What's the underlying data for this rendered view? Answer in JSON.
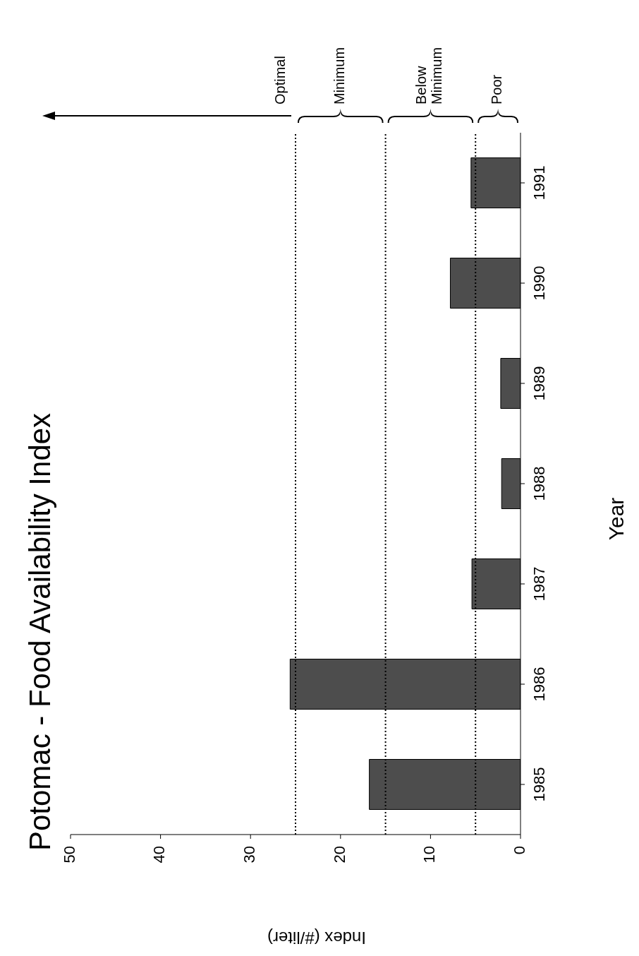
{
  "chart_data": {
    "type": "bar",
    "orientation": "horizontal",
    "title": "Potomac - Food Availability Index",
    "xlabel": "Index (#/liter)",
    "ylabel": "Year",
    "categories": [
      "1991",
      "1990",
      "1989",
      "1988",
      "1987",
      "1986",
      "1985"
    ],
    "values": [
      5.5,
      7.8,
      2.2,
      2.1,
      5.4,
      25.6,
      16.8
    ],
    "color": "#4d4d4d",
    "xlim": [
      50,
      0
    ],
    "xticks": [
      50,
      40,
      30,
      20,
      10,
      0
    ],
    "ref_lines": [
      {
        "axis": "x",
        "value": 5,
        "line_style": "dotted"
      },
      {
        "axis": "x",
        "value": 15,
        "line_style": "dotted"
      },
      {
        "axis": "x",
        "value": 25,
        "line_style": "dotted"
      }
    ],
    "annotations": [
      "Poor",
      "Below Minimum",
      "Minimum",
      "Optimal"
    ]
  }
}
